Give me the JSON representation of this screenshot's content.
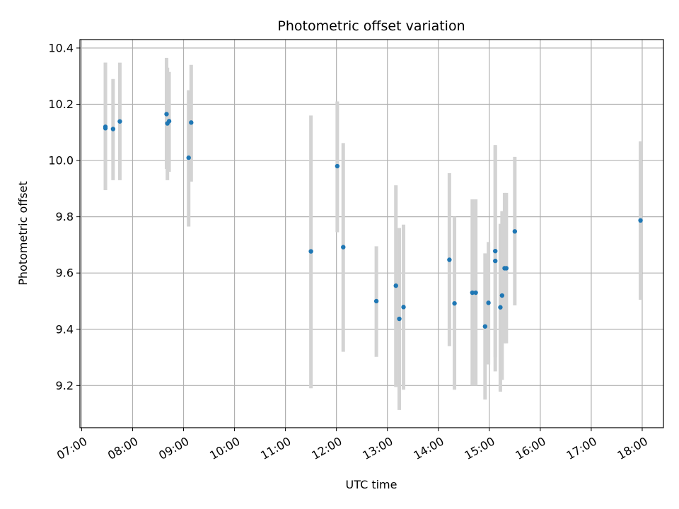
{
  "chart_data": {
    "type": "scatter",
    "title": "Photometric offset variation",
    "xlabel": "UTC time",
    "ylabel": "Photometric offset",
    "x_ticks": [
      "07:00",
      "08:00",
      "09:00",
      "10:00",
      "11:00",
      "12:00",
      "13:00",
      "14:00",
      "15:00",
      "16:00",
      "17:00",
      "18:00"
    ],
    "y_ticks": [
      "9.2",
      "9.4",
      "9.6",
      "9.8",
      "10.0",
      "10.2",
      "10.4"
    ],
    "xlim": [
      "06:58",
      "18:25"
    ],
    "ylim": [
      9.05,
      10.43
    ],
    "grid": true,
    "colors": {
      "points": "#1f77b4",
      "errorbars": "#d3d3d3",
      "grid": "#b0b0b0"
    },
    "series": [
      {
        "points": [
          {
            "t": "07:28",
            "y": 10.12,
            "lo": 9.895,
            "hi": 10.348
          },
          {
            "t": "07:28",
            "y": 10.115,
            "lo": 9.895,
            "hi": 10.348
          },
          {
            "t": "07:37",
            "y": 10.112,
            "lo": 9.93,
            "hi": 10.29
          },
          {
            "t": "07:45",
            "y": 10.139,
            "lo": 9.93,
            "hi": 10.348
          },
          {
            "t": "08:40",
            "y": 10.165,
            "lo": 9.97,
            "hi": 10.365
          },
          {
            "t": "08:41",
            "y": 10.132,
            "lo": 9.93,
            "hi": 10.33
          },
          {
            "t": "08:43",
            "y": 10.14,
            "lo": 9.96,
            "hi": 10.315
          },
          {
            "t": "09:06",
            "y": 10.01,
            "lo": 9.765,
            "hi": 10.25
          },
          {
            "t": "09:09",
            "y": 10.135,
            "lo": 9.925,
            "hi": 10.34
          },
          {
            "t": "11:30",
            "y": 9.677,
            "lo": 9.19,
            "hi": 10.16
          },
          {
            "t": "12:01",
            "y": 9.98,
            "lo": 9.745,
            "hi": 10.21
          },
          {
            "t": "12:08",
            "y": 9.692,
            "lo": 9.32,
            "hi": 10.062
          },
          {
            "t": "12:47",
            "y": 9.5,
            "lo": 9.302,
            "hi": 9.695
          },
          {
            "t": "13:10",
            "y": 9.555,
            "lo": 9.195,
            "hi": 9.912
          },
          {
            "t": "13:14",
            "y": 9.437,
            "lo": 9.113,
            "hi": 9.76
          },
          {
            "t": "13:19",
            "y": 9.479,
            "lo": 9.185,
            "hi": 9.772
          },
          {
            "t": "14:13",
            "y": 9.647,
            "lo": 9.34,
            "hi": 9.955
          },
          {
            "t": "14:19",
            "y": 9.492,
            "lo": 9.185,
            "hi": 9.8
          },
          {
            "t": "14:40",
            "y": 9.53,
            "lo": 9.2,
            "hi": 9.862
          },
          {
            "t": "14:44",
            "y": 9.53,
            "lo": 9.2,
            "hi": 9.862
          },
          {
            "t": "14:55",
            "y": 9.41,
            "lo": 9.15,
            "hi": 9.67
          },
          {
            "t": "14:59",
            "y": 9.494,
            "lo": 9.275,
            "hi": 9.71
          },
          {
            "t": "15:07",
            "y": 9.678,
            "lo": 9.3,
            "hi": 10.055
          },
          {
            "t": "15:07",
            "y": 9.643,
            "lo": 9.25,
            "hi": 10.05
          },
          {
            "t": "15:13",
            "y": 9.478,
            "lo": 9.178,
            "hi": 9.775
          },
          {
            "t": "15:15",
            "y": 9.52,
            "lo": 9.22,
            "hi": 9.82
          },
          {
            "t": "15:18",
            "y": 9.617,
            "lo": 9.35,
            "hi": 9.885
          },
          {
            "t": "15:20",
            "y": 9.617,
            "lo": 9.35,
            "hi": 9.885
          },
          {
            "t": "15:30",
            "y": 9.748,
            "lo": 9.485,
            "hi": 10.013
          },
          {
            "t": "17:58",
            "y": 9.787,
            "lo": 9.505,
            "hi": 10.068
          }
        ]
      }
    ]
  }
}
